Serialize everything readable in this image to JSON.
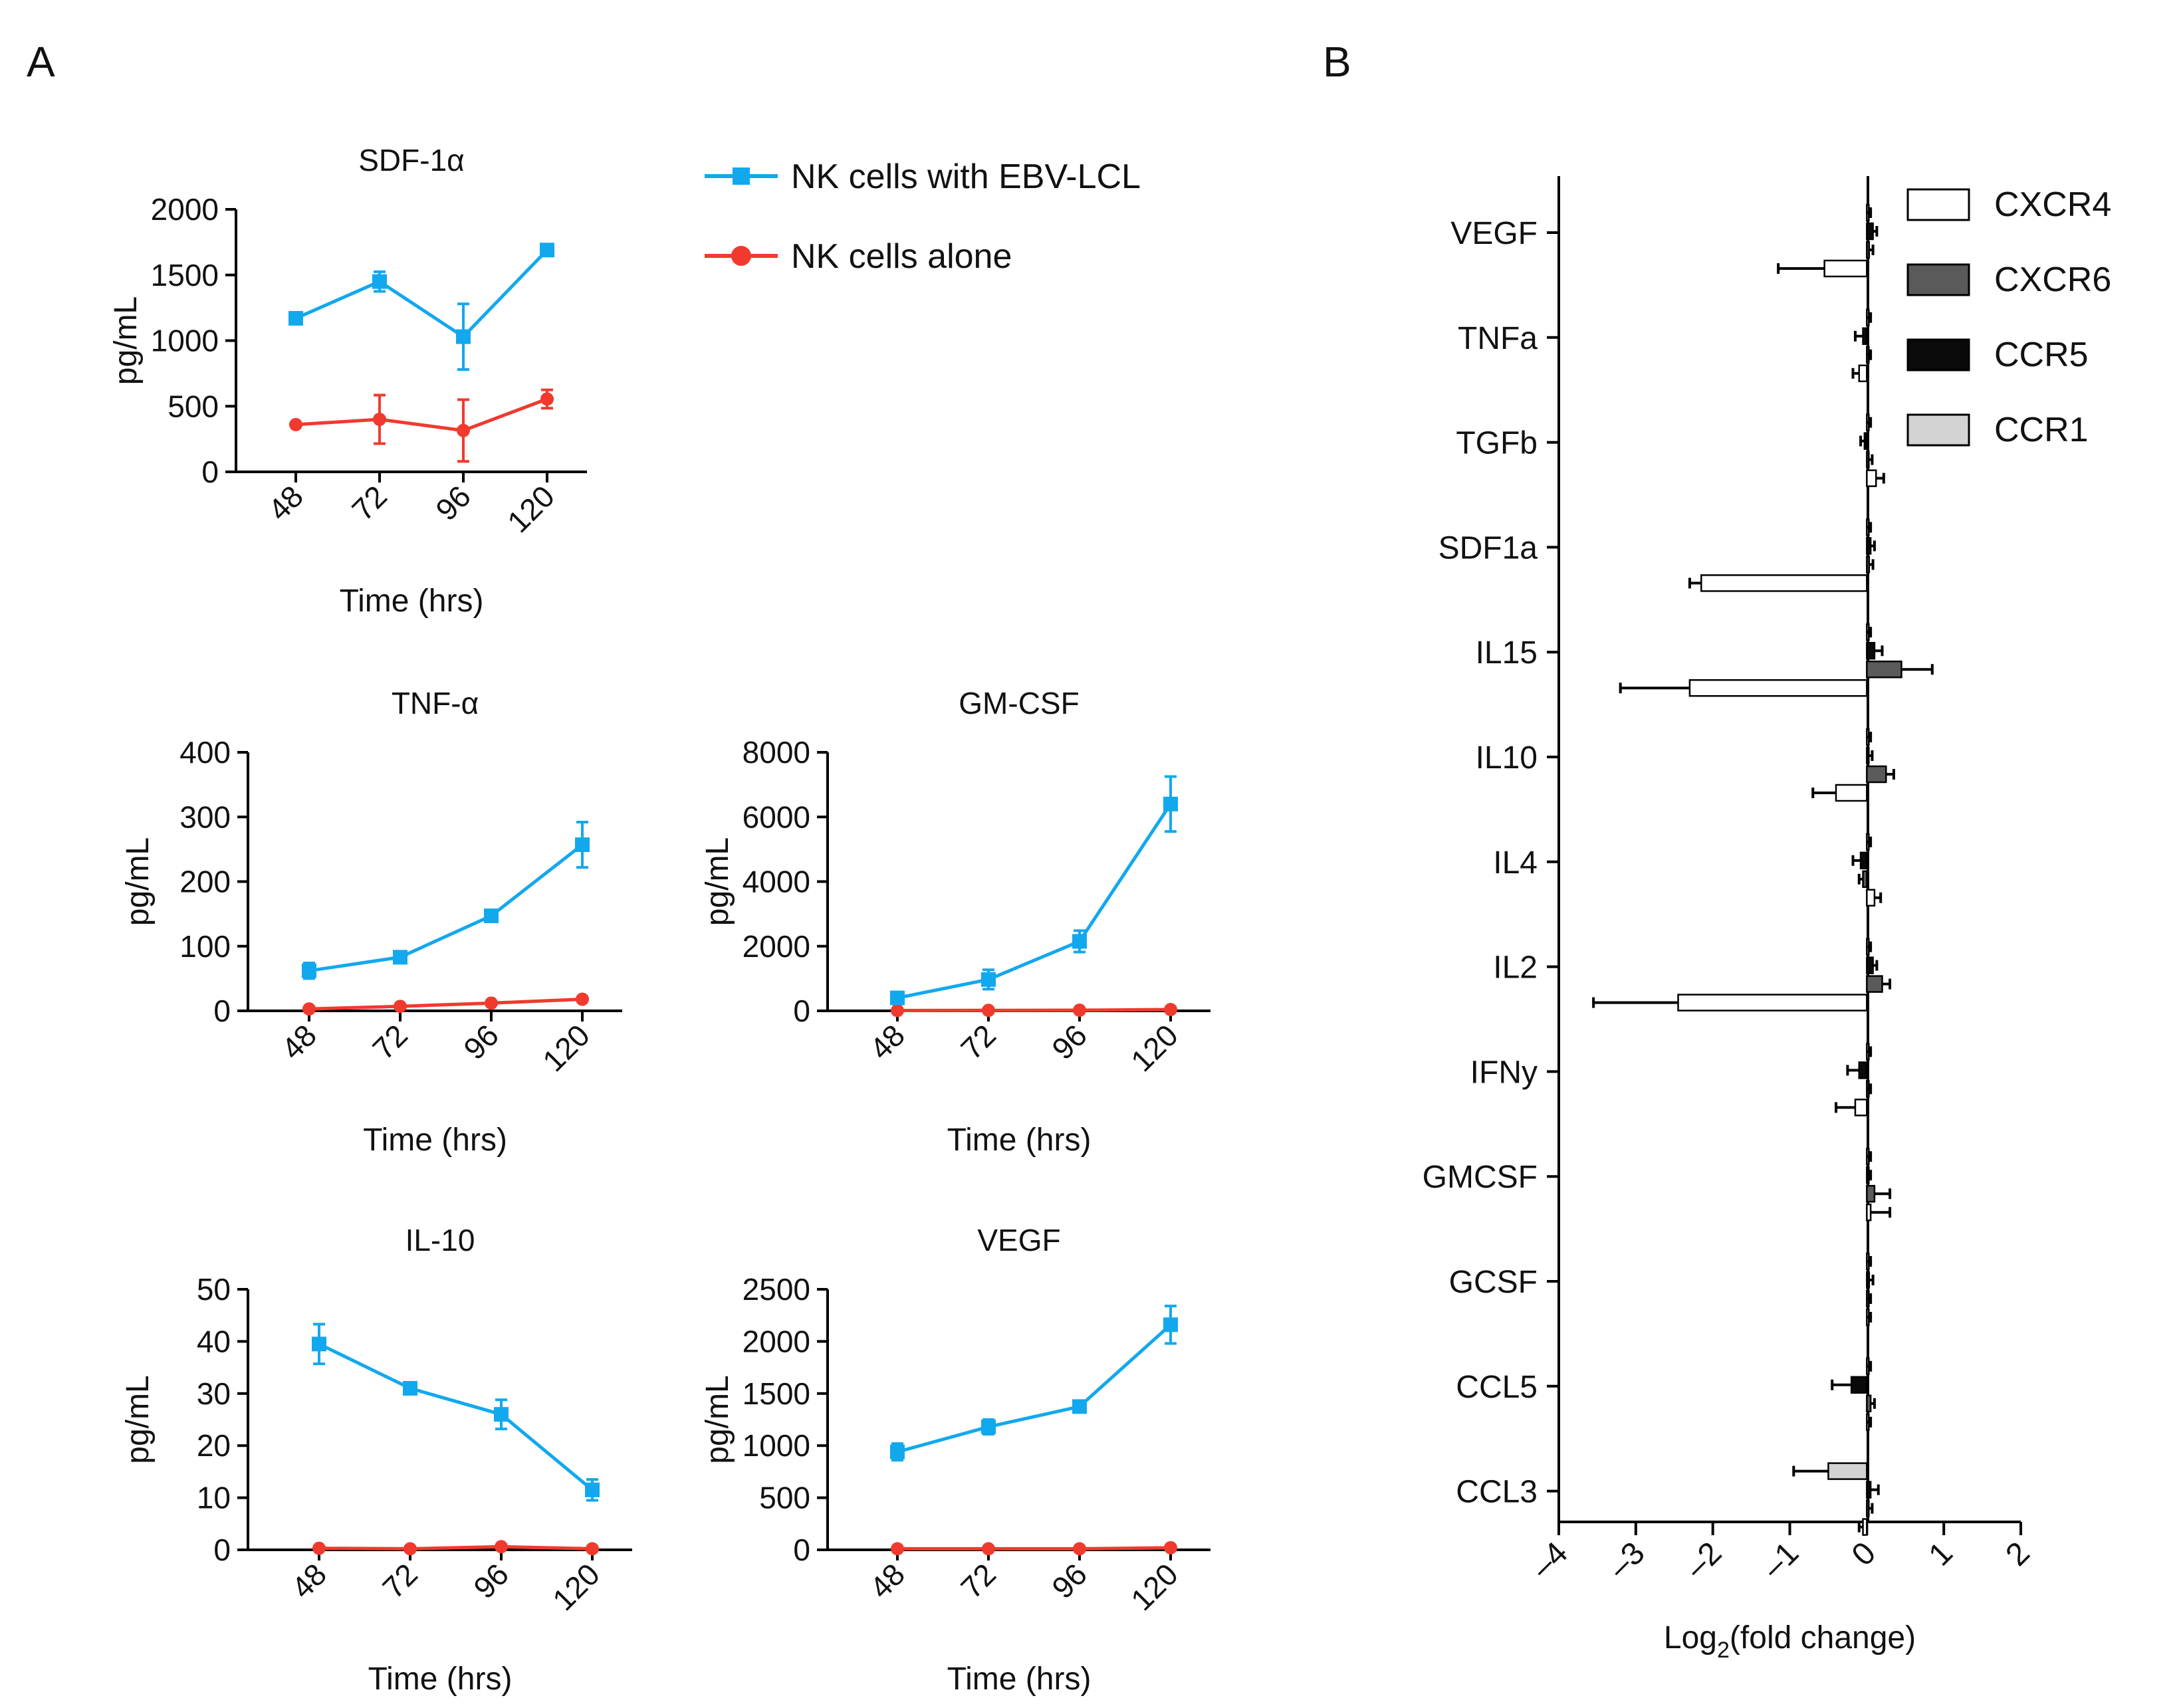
{
  "panels": {
    "a": "A",
    "b": "B"
  },
  "colors": {
    "with_lcl": "#12a8ee",
    "alone": "#f03a2e",
    "axis": "#000000"
  },
  "legend_a": {
    "with_lcl": "NK cells with EBV-LCL",
    "alone": "NK cells alone"
  },
  "line_charts": [
    {
      "key": "sdf",
      "type": "line",
      "title": "SDF-1α",
      "ylabel": "pg/mL",
      "xlabel": "Time (hrs)",
      "categories": [
        "48",
        "72",
        "96",
        "120"
      ],
      "ylim": [
        0,
        2000
      ],
      "yticks": [
        0,
        500,
        1000,
        1500,
        2000
      ],
      "series": [
        {
          "name": "NK cells with EBV-LCL",
          "values": [
            1170,
            1450,
            1030,
            1690
          ],
          "errors": [
            0,
            75,
            250,
            0
          ]
        },
        {
          "name": "NK cells alone",
          "values": [
            360,
            400,
            315,
            555
          ],
          "errors": [
            0,
            185,
            235,
            70
          ]
        }
      ]
    },
    {
      "key": "tnf",
      "type": "line",
      "title": "TNF-α",
      "ylabel": "pg/mL",
      "xlabel": "Time (hrs)",
      "categories": [
        "48",
        "72",
        "96",
        "120"
      ],
      "ylim": [
        0,
        400
      ],
      "yticks": [
        0,
        100,
        200,
        300,
        400
      ],
      "series": [
        {
          "name": "NK cells with EBV-LCL",
          "values": [
            62,
            83,
            147,
            257
          ],
          "errors": [
            12,
            8,
            8,
            35
          ]
        },
        {
          "name": "NK cells alone",
          "values": [
            3,
            7,
            12,
            18
          ],
          "errors": [
            0,
            0,
            0,
            3
          ]
        }
      ]
    },
    {
      "key": "gmcsf",
      "type": "line",
      "title": "GM-CSF",
      "ylabel": "pg/mL",
      "xlabel": "Time (hrs)",
      "categories": [
        "48",
        "72",
        "96",
        "120"
      ],
      "ylim": [
        0,
        8000
      ],
      "yticks": [
        0,
        2000,
        4000,
        6000,
        8000
      ],
      "series": [
        {
          "name": "NK cells with EBV-LCL",
          "values": [
            400,
            970,
            2150,
            6400
          ],
          "errors": [
            100,
            300,
            330,
            850
          ]
        },
        {
          "name": "NK cells alone",
          "values": [
            10,
            15,
            20,
            40
          ],
          "errors": [
            0,
            0,
            0,
            0
          ]
        }
      ]
    },
    {
      "key": "il10",
      "type": "line",
      "title": "IL-10",
      "ylabel": "pg/mL",
      "xlabel": "Time (hrs)",
      "categories": [
        "48",
        "72",
        "96",
        "120"
      ],
      "ylim": [
        0,
        50
      ],
      "yticks": [
        0,
        10,
        20,
        30,
        40,
        50
      ],
      "series": [
        {
          "name": "NK cells with EBV-LCL",
          "values": [
            39.5,
            31,
            26,
            11.5
          ],
          "errors": [
            3.8,
            0.6,
            2.8,
            2
          ]
        },
        {
          "name": "NK cells alone",
          "values": [
            0.3,
            0.2,
            0.6,
            0.2
          ],
          "errors": [
            0,
            0,
            0,
            0
          ]
        }
      ]
    },
    {
      "key": "vegf",
      "type": "line",
      "title": "VEGF",
      "ylabel": "pg/mL",
      "xlabel": "Time (hrs)",
      "categories": [
        "48",
        "72",
        "96",
        "120"
      ],
      "ylim": [
        0,
        2500
      ],
      "yticks": [
        0,
        500,
        1000,
        1500,
        2000,
        2500
      ],
      "series": [
        {
          "name": "NK cells with EBV-LCL",
          "values": [
            940,
            1180,
            1375,
            2160
          ],
          "errors": [
            80,
            70,
            50,
            180
          ]
        },
        {
          "name": "NK cells alone",
          "values": [
            10,
            10,
            10,
            20
          ],
          "errors": [
            0,
            0,
            0,
            0
          ]
        }
      ]
    }
  ],
  "chart_data": {
    "type": "bar",
    "orientation": "horizontal",
    "xlabel_main": "Log",
    "xlabel_sub": "2",
    "xlabel_rest": "(fold change)",
    "xlim": [
      -4,
      2
    ],
    "xticks": [
      "–4",
      "–3",
      "–2",
      "–1",
      "0",
      "1",
      "2"
    ],
    "categories": [
      "VEGF",
      "TNFa",
      "TGFb",
      "SDF1a",
      "IL15",
      "IL10",
      "IL4",
      "IL2",
      "IFNy",
      "GMCSF",
      "GCSF",
      "CCL5",
      "CCL3"
    ],
    "series": [
      {
        "name": "CXCR4",
        "color": "#ffffff",
        "values": [
          -0.55,
          -0.1,
          0.12,
          -2.15,
          -2.3,
          -0.4,
          0.1,
          -2.45,
          -0.15,
          0.05,
          0.0,
          0.0,
          -0.05
        ],
        "errors": [
          0.6,
          0.08,
          0.1,
          0.15,
          0.9,
          0.3,
          0.08,
          1.1,
          0.25,
          0.25,
          0.05,
          0.05,
          0.05
        ]
      },
      {
        "name": "CXCR6",
        "color": "#5a5a5a",
        "values": [
          0.03,
          0.0,
          0.02,
          0.03,
          0.45,
          0.25,
          -0.05,
          0.2,
          0.0,
          0.1,
          0.0,
          0.05,
          0.02
        ],
        "errors": [
          0.05,
          0.05,
          0.05,
          0.05,
          0.4,
          0.1,
          0.05,
          0.1,
          0.05,
          0.2,
          0.05,
          0.05,
          0.05
        ]
      },
      {
        "name": "CCR5",
        "color": "#0a0a0a",
        "values": [
          0.08,
          -0.05,
          -0.03,
          0.05,
          0.1,
          0.02,
          -0.08,
          0.08,
          -0.1,
          0.0,
          0.03,
          -0.2,
          0.05
        ],
        "errors": [
          0.05,
          0.1,
          0.05,
          0.05,
          0.1,
          0.05,
          0.1,
          0.05,
          0.15,
          0.05,
          0.05,
          0.25,
          0.1
        ]
      },
      {
        "name": "CCR1",
        "color": "#d3d3d3",
        "values": [
          0.0,
          0.0,
          0.0,
          0.0,
          0.0,
          0.0,
          0.0,
          0.0,
          0.0,
          0.0,
          0.0,
          0.0,
          -0.5
        ],
        "errors": [
          0.05,
          0.05,
          0.05,
          0.05,
          0.05,
          0.05,
          0.05,
          0.05,
          0.05,
          0.05,
          0.05,
          0.05,
          0.45
        ]
      }
    ],
    "legend": [
      "CXCR4",
      "CXCR6",
      "CCR5",
      "CCR1"
    ]
  }
}
